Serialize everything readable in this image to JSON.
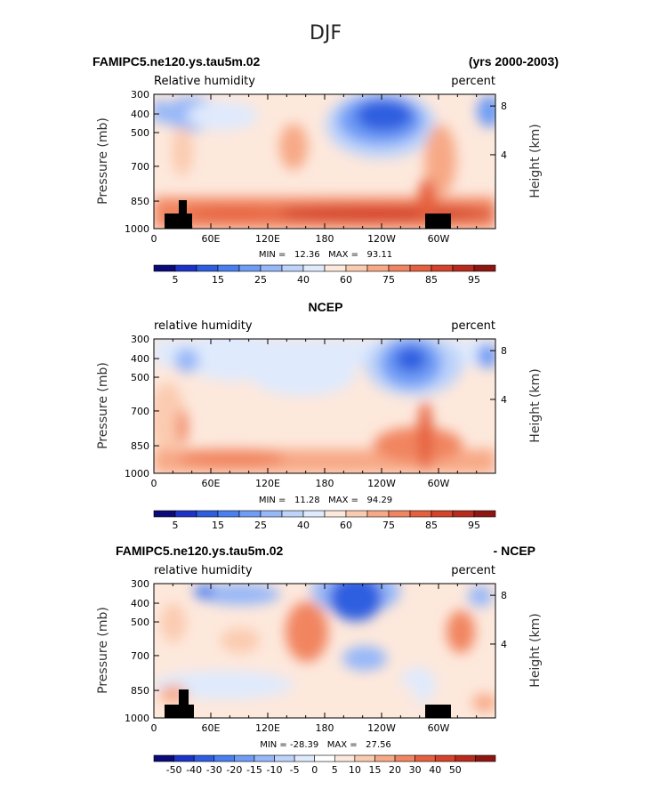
{
  "figure_title": "DJF",
  "panels": [
    {
      "header_left": "FAMIPC5.ne120.ys.tau5m.02",
      "header_right": "(yrs 2000-2003)",
      "header_center": "",
      "subtitle_left": "Relative humidity",
      "subtitle_right": "percent",
      "stats": "MIN =   12.36   MAX =   93.11"
    },
    {
      "header_left": "",
      "header_right": "",
      "header_center": "NCEP",
      "subtitle_left": "relative humidity",
      "subtitle_right": "percent",
      "stats": "MIN =   11.28   MAX =   94.29"
    },
    {
      "header_left": "FAMIPC5.ne120.ys.tau5m.02",
      "header_right": "- NCEP",
      "header_center": "",
      "subtitle_left": "relative humidity",
      "subtitle_right": "percent",
      "stats": "MIN = -28.39   MAX =   27.56"
    }
  ],
  "chart_data": [
    {
      "type": "heatmap",
      "title": "FAMIPC5.ne120.ys.tau5m.02",
      "ylabel": "Pressure (mb)",
      "y2label": "Height (km)",
      "x_ticks": [
        "0",
        "60E",
        "120E",
        "180",
        "120W",
        "60W"
      ],
      "y_ticks": [
        "300",
        "400",
        "500",
        "700",
        "850",
        "1000"
      ],
      "y2_ticks": [
        "8",
        "4"
      ],
      "colorbar_labels": [
        "5",
        "15",
        "25",
        "40",
        "60",
        "75",
        "85",
        "95"
      ],
      "min": 12.36,
      "max": 93.11,
      "colors": [
        "#0a0a78",
        "#1c33c8",
        "#2e5ee0",
        "#4a7ff0",
        "#6f9cf5",
        "#97b8f8",
        "#bdd3fa",
        "#dfeafd",
        "#fde8dc",
        "#fbcbb0",
        "#f7a986",
        "#f18561",
        "#e5603e",
        "#d4432a",
        "#b82a1c",
        "#8e1612"
      ],
      "ylim": [
        1000,
        300
      ]
    },
    {
      "type": "heatmap",
      "title": "NCEP",
      "ylabel": "Pressure (mb)",
      "y2label": "Height (km)",
      "x_ticks": [
        "0",
        "60E",
        "120E",
        "180",
        "120W",
        "60W"
      ],
      "y_ticks": [
        "300",
        "400",
        "500",
        "700",
        "850",
        "1000"
      ],
      "y2_ticks": [
        "8",
        "4"
      ],
      "colorbar_labels": [
        "5",
        "15",
        "25",
        "40",
        "60",
        "75",
        "85",
        "95"
      ],
      "min": 11.28,
      "max": 94.29,
      "colors": [
        "#0a0a78",
        "#1c33c8",
        "#2e5ee0",
        "#4a7ff0",
        "#6f9cf5",
        "#97b8f8",
        "#bdd3fa",
        "#dfeafd",
        "#fde8dc",
        "#fbcbb0",
        "#f7a986",
        "#f18561",
        "#e5603e",
        "#d4432a",
        "#b82a1c",
        "#8e1612"
      ],
      "ylim": [
        1000,
        300
      ]
    },
    {
      "type": "heatmap",
      "title": "FAMIPC5.ne120.ys.tau5m.02 - NCEP",
      "ylabel": "Pressure (mb)",
      "y2label": "Height (km)",
      "x_ticks": [
        "0",
        "60E",
        "120E",
        "180",
        "120W",
        "60W"
      ],
      "y_ticks": [
        "300",
        "400",
        "500",
        "700",
        "850",
        "1000"
      ],
      "y2_ticks": [
        "8",
        "4"
      ],
      "colorbar_labels": [
        "-50",
        "-40",
        "-30",
        "-20",
        "-15",
        "-10",
        "-5",
        "0",
        "5",
        "10",
        "15",
        "20",
        "30",
        "40",
        "50"
      ],
      "min": -28.39,
      "max": 27.56,
      "colors": [
        "#0a0a78",
        "#1c33c8",
        "#2e5ee0",
        "#4a7ff0",
        "#6f9cf5",
        "#97b8f8",
        "#bdd3fa",
        "#dfeafd",
        "#ffffff",
        "#fde8dc",
        "#fbcbb0",
        "#f7a986",
        "#f18561",
        "#e5603e",
        "#d4432a",
        "#b82a1c",
        "#8e1612"
      ],
      "ylim": [
        1000,
        300
      ]
    }
  ]
}
